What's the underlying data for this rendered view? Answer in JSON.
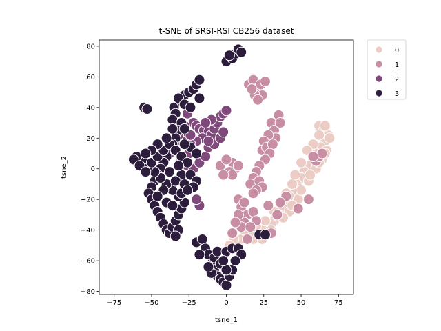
{
  "chart_data": {
    "type": "scatter",
    "title": "t-SNE of SRSI-RSI CB256 dataset",
    "xlabel": "tsne_1",
    "ylabel": "tsne_2",
    "xlim": [
      -85,
      85
    ],
    "ylim": [
      -82,
      84
    ],
    "xticks": [
      -75,
      -50,
      -25,
      0,
      25,
      50,
      75
    ],
    "yticks": [
      -80,
      -60,
      -40,
      -20,
      0,
      20,
      40,
      60,
      80
    ],
    "grid": false,
    "legend_placement": "outside-top-right",
    "colors": {
      "0": "#ebcdc6",
      "1": "#c88ea4",
      "2": "#80497b",
      "3": "#2c1d3c"
    },
    "series": [
      {
        "name": "0",
        "points": [
          [
            62,
            28
          ],
          [
            65,
            25
          ],
          [
            68,
            22
          ],
          [
            66,
            18
          ],
          [
            63,
            14
          ],
          [
            60,
            10
          ],
          [
            58,
            6
          ],
          [
            55,
            2
          ],
          [
            52,
            -2
          ],
          [
            50,
            -6
          ],
          [
            47,
            -10
          ],
          [
            45,
            -14
          ],
          [
            42,
            -18
          ],
          [
            40,
            -22
          ],
          [
            38,
            -26
          ],
          [
            35,
            -30
          ],
          [
            32,
            -34
          ],
          [
            28,
            -38
          ],
          [
            25,
            -40
          ],
          [
            22,
            -44
          ],
          [
            18,
            -46
          ],
          [
            14,
            -46
          ],
          [
            10,
            -46
          ],
          [
            5,
            -46
          ],
          [
            2,
            -50
          ],
          [
            8,
            -52
          ],
          [
            18,
            -40
          ],
          [
            30,
            -36
          ],
          [
            42,
            -28
          ],
          [
            48,
            -20
          ],
          [
            55,
            -8
          ],
          [
            60,
            0
          ],
          [
            64,
            6
          ],
          [
            67,
            12
          ],
          [
            69,
            20
          ],
          [
            66,
            28
          ],
          [
            62,
            22
          ],
          [
            58,
            16
          ],
          [
            54,
            12
          ],
          [
            50,
            4
          ],
          [
            46,
            -4
          ],
          [
            44,
            -10
          ],
          [
            40,
            -16
          ],
          [
            36,
            -22
          ],
          [
            32,
            -28
          ],
          [
            26,
            -34
          ],
          [
            20,
            -38
          ],
          [
            15,
            -42
          ],
          [
            38,
            -32
          ],
          [
            44,
            -24
          ],
          [
            50,
            -14
          ],
          [
            56,
            -4
          ],
          [
            62,
            4
          ],
          [
            66,
            10
          ],
          [
            30,
            -40
          ],
          [
            24,
            -46
          ],
          [
            12,
            -40
          ]
        ]
      },
      {
        "name": "1",
        "points": [
          [
            15,
            55
          ],
          [
            18,
            58
          ],
          [
            20,
            52
          ],
          [
            22,
            50
          ],
          [
            24,
            48
          ],
          [
            23,
            55
          ],
          [
            19,
            48
          ],
          [
            17,
            52
          ],
          [
            26,
            57
          ],
          [
            21,
            45
          ],
          [
            30,
            30
          ],
          [
            32,
            25
          ],
          [
            33,
            20
          ],
          [
            35,
            35
          ],
          [
            36,
            30
          ],
          [
            28,
            22
          ],
          [
            25,
            18
          ],
          [
            24,
            12
          ],
          [
            27,
            14
          ],
          [
            31,
            16
          ],
          [
            29,
            10
          ],
          [
            26,
            6
          ],
          [
            22,
            2
          ],
          [
            20,
            -2
          ],
          [
            18,
            -6
          ],
          [
            16,
            -10
          ],
          [
            22,
            -8
          ],
          [
            24,
            -12
          ],
          [
            20,
            -14
          ],
          [
            18,
            -16
          ],
          [
            8,
            -20
          ],
          [
            10,
            -25
          ],
          [
            12,
            -22
          ],
          [
            6,
            0
          ],
          [
            4,
            4
          ],
          [
            2,
            -2
          ],
          [
            -4,
            2
          ],
          [
            0,
            6
          ],
          [
            8,
            2
          ],
          [
            4,
            -4
          ],
          [
            -2,
            -4
          ],
          [
            14,
            -30
          ],
          [
            12,
            -35
          ],
          [
            10,
            -38
          ],
          [
            8,
            -30
          ],
          [
            6,
            -35
          ],
          [
            18,
            -28
          ],
          [
            20,
            -34
          ],
          [
            4,
            -42
          ],
          [
            40,
            -18
          ],
          [
            36,
            -22
          ],
          [
            28,
            -24
          ],
          [
            48,
            -26
          ],
          [
            55,
            -20
          ],
          [
            60,
            5
          ],
          [
            62,
            8
          ],
          [
            64,
            10
          ],
          [
            58,
            8
          ],
          [
            34,
            -30
          ],
          [
            30,
            -42
          ],
          [
            14,
            -46
          ],
          [
            16,
            -38
          ]
        ]
      },
      {
        "name": "2",
        "points": [
          [
            -22,
            30
          ],
          [
            -20,
            28
          ],
          [
            -18,
            26
          ],
          [
            -15,
            25
          ],
          [
            -12,
            24
          ],
          [
            -10,
            22
          ],
          [
            -8,
            26
          ],
          [
            -6,
            30
          ],
          [
            -4,
            34
          ],
          [
            -2,
            36
          ],
          [
            0,
            38
          ],
          [
            -10,
            32
          ],
          [
            -14,
            30
          ],
          [
            -16,
            20
          ],
          [
            -20,
            18
          ],
          [
            -24,
            16
          ],
          [
            -28,
            20
          ],
          [
            -30,
            24
          ],
          [
            -32,
            22
          ],
          [
            -34,
            18
          ],
          [
            -36,
            14
          ],
          [
            -38,
            10
          ],
          [
            -40,
            12
          ],
          [
            -25,
            10
          ],
          [
            -30,
            6
          ],
          [
            -26,
            2
          ],
          [
            -22,
            0
          ],
          [
            -18,
            4
          ],
          [
            -14,
            8
          ],
          [
            -12,
            14
          ],
          [
            -8,
            16
          ],
          [
            -4,
            20
          ],
          [
            -2,
            24
          ],
          [
            -18,
            -24
          ],
          [
            -20,
            -20
          ],
          [
            -28,
            28
          ],
          [
            -26,
            36
          ],
          [
            -35,
            30
          ],
          [
            -24,
            22
          ],
          [
            -12,
            18
          ]
        ]
      },
      {
        "name": "3",
        "points": [
          [
            -55,
            40
          ],
          [
            -53,
            39
          ],
          [
            -35,
            40
          ],
          [
            -30,
            44
          ],
          [
            -28,
            48
          ],
          [
            -25,
            50
          ],
          [
            -22,
            52
          ],
          [
            -20,
            55
          ],
          [
            -18,
            58
          ],
          [
            -32,
            46
          ],
          [
            -28,
            42
          ],
          [
            -34,
            36
          ],
          [
            -36,
            32
          ],
          [
            -30,
            30
          ],
          [
            -32,
            25
          ],
          [
            -34,
            20
          ],
          [
            -36,
            16
          ],
          [
            -38,
            12
          ],
          [
            -40,
            8
          ],
          [
            -42,
            4
          ],
          [
            -44,
            0
          ],
          [
            -46,
            -4
          ],
          [
            -48,
            -8
          ],
          [
            -50,
            -12
          ],
          [
            -52,
            -16
          ],
          [
            -50,
            -20
          ],
          [
            -48,
            -24
          ],
          [
            -46,
            -28
          ],
          [
            -44,
            -32
          ],
          [
            -42,
            -36
          ],
          [
            -40,
            -40
          ],
          [
            -38,
            -42
          ],
          [
            -36,
            -38
          ],
          [
            -34,
            -34
          ],
          [
            -32,
            -30
          ],
          [
            -30,
            -26
          ],
          [
            -28,
            -22
          ],
          [
            -32,
            -18
          ],
          [
            -36,
            -14
          ],
          [
            -40,
            -10
          ],
          [
            -44,
            -6
          ],
          [
            -48,
            -2
          ],
          [
            -52,
            2
          ],
          [
            -56,
            6
          ],
          [
            -60,
            8
          ],
          [
            -62,
            6
          ],
          [
            -58,
            2
          ],
          [
            -54,
            -2
          ],
          [
            -50,
            4
          ],
          [
            -46,
            8
          ],
          [
            -42,
            12
          ],
          [
            -38,
            16
          ],
          [
            -34,
            12
          ],
          [
            -30,
            8
          ],
          [
            -26,
            4
          ],
          [
            -30,
            -4
          ],
          [
            -34,
            -8
          ],
          [
            -38,
            -2
          ],
          [
            -42,
            -14
          ],
          [
            -46,
            -18
          ],
          [
            -40,
            -22
          ],
          [
            -36,
            -24
          ],
          [
            -32,
            -40
          ],
          [
            -34,
            -44
          ],
          [
            -30,
            -16
          ],
          [
            -28,
            -10
          ],
          [
            -24,
            -4
          ],
          [
            -20,
            -8
          ],
          [
            -22,
            -12
          ],
          [
            -26,
            -14
          ],
          [
            -24,
            14
          ],
          [
            -20,
            10
          ],
          [
            -28,
            16
          ],
          [
            -32,
            2
          ],
          [
            -46,
            16
          ],
          [
            -50,
            12
          ],
          [
            -54,
            10
          ],
          [
            -40,
            20
          ],
          [
            -20,
            -48
          ],
          [
            -16,
            -46
          ],
          [
            -14,
            -52
          ],
          [
            -12,
            -56
          ],
          [
            -10,
            -62
          ],
          [
            -8,
            -66
          ],
          [
            -6,
            -70
          ],
          [
            -4,
            -72
          ],
          [
            -2,
            -74
          ],
          [
            0,
            -76
          ],
          [
            2,
            -70
          ],
          [
            4,
            -66
          ],
          [
            -10,
            -68
          ],
          [
            -12,
            -64
          ],
          [
            -8,
            -58
          ],
          [
            -6,
            -54
          ],
          [
            0,
            -54
          ],
          [
            4,
            -52
          ],
          [
            8,
            -52
          ],
          [
            10,
            -56
          ],
          [
            -4,
            -62
          ],
          [
            0,
            -66
          ],
          [
            -2,
            -60
          ],
          [
            6,
            -60
          ],
          [
            -18,
            -56
          ],
          [
            0,
            70
          ],
          [
            4,
            72
          ],
          [
            6,
            75
          ],
          [
            8,
            78
          ],
          [
            10,
            76
          ],
          [
            2,
            74
          ],
          [
            22,
            -43
          ],
          [
            26,
            -43
          ],
          [
            -28,
            26
          ],
          [
            -36,
            26
          ],
          [
            -24,
            40
          ],
          [
            -18,
            46
          ]
        ]
      }
    ]
  },
  "legend": {
    "entries": [
      {
        "label": "0",
        "color": "#ebcdc6"
      },
      {
        "label": "1",
        "color": "#c88ea4"
      },
      {
        "label": "2",
        "color": "#80497b"
      },
      {
        "label": "3",
        "color": "#2c1d3c"
      }
    ]
  }
}
